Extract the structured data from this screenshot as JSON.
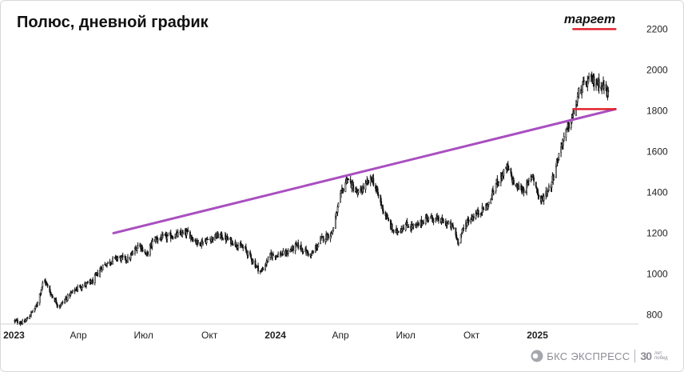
{
  "title": "Полюс, дневной график",
  "chart_data": {
    "type": "candlestick",
    "title": "Полюс, дневной график",
    "xlabel": "",
    "ylabel": "",
    "ylim": [
      700,
      2280
    ],
    "yticks": [
      800,
      1000,
      1200,
      1400,
      1600,
      1800,
      2000,
      2200
    ],
    "xticks": [
      {
        "label": "2023",
        "date": "2023-01-01",
        "bold": true
      },
      {
        "label": "Апр",
        "date": "2023-04-01",
        "bold": false
      },
      {
        "label": "Июл",
        "date": "2023-07-01",
        "bold": false
      },
      {
        "label": "Окт",
        "date": "2023-10-01",
        "bold": false
      },
      {
        "label": "2024",
        "date": "2024-01-01",
        "bold": true
      },
      {
        "label": "Апр",
        "date": "2024-04-01",
        "bold": false
      },
      {
        "label": "Июл",
        "date": "2024-07-01",
        "bold": false
      },
      {
        "label": "Окт",
        "date": "2024-10-01",
        "bold": false
      },
      {
        "label": "2025",
        "date": "2025-01-01",
        "bold": true
      }
    ],
    "price_path": [
      [
        "2023-01-01",
        770
      ],
      [
        "2023-01-15",
        760
      ],
      [
        "2023-02-01",
        840
      ],
      [
        "2023-02-12",
        975
      ],
      [
        "2023-02-22",
        900
      ],
      [
        "2023-03-05",
        840
      ],
      [
        "2023-03-20",
        900
      ],
      [
        "2023-04-01",
        935
      ],
      [
        "2023-04-20",
        960
      ],
      [
        "2023-05-05",
        1040
      ],
      [
        "2023-05-25",
        1080
      ],
      [
        "2023-06-10",
        1070
      ],
      [
        "2023-06-25",
        1150
      ],
      [
        "2023-07-05",
        1090
      ],
      [
        "2023-07-15",
        1170
      ],
      [
        "2023-08-01",
        1180
      ],
      [
        "2023-08-15",
        1190
      ],
      [
        "2023-09-01",
        1200
      ],
      [
        "2023-09-15",
        1150
      ],
      [
        "2023-10-01",
        1170
      ],
      [
        "2023-10-15",
        1190
      ],
      [
        "2023-11-01",
        1160
      ],
      [
        "2023-11-20",
        1120
      ],
      [
        "2023-12-05",
        1040
      ],
      [
        "2023-12-12",
        1010
      ],
      [
        "2023-12-25",
        1090
      ],
      [
        "2024-01-15",
        1100
      ],
      [
        "2024-02-01",
        1140
      ],
      [
        "2024-02-20",
        1090
      ],
      [
        "2024-03-05",
        1170
      ],
      [
        "2024-03-20",
        1200
      ],
      [
        "2024-04-01",
        1380
      ],
      [
        "2024-04-10",
        1470
      ],
      [
        "2024-04-25",
        1390
      ],
      [
        "2024-05-05",
        1430
      ],
      [
        "2024-05-15",
        1470
      ],
      [
        "2024-06-01",
        1300
      ],
      [
        "2024-06-15",
        1200
      ],
      [
        "2024-07-01",
        1240
      ],
      [
        "2024-07-15",
        1230
      ],
      [
        "2024-08-01",
        1280
      ],
      [
        "2024-08-20",
        1260
      ],
      [
        "2024-09-05",
        1230
      ],
      [
        "2024-09-12",
        1160
      ],
      [
        "2024-09-25",
        1260
      ],
      [
        "2024-10-10",
        1300
      ],
      [
        "2024-10-25",
        1340
      ],
      [
        "2024-11-05",
        1450
      ],
      [
        "2024-11-20",
        1520
      ],
      [
        "2024-12-01",
        1430
      ],
      [
        "2024-12-15",
        1410
      ],
      [
        "2024-12-25",
        1490
      ],
      [
        "2025-01-05",
        1350
      ],
      [
        "2025-01-20",
        1440
      ],
      [
        "2025-02-05",
        1650
      ],
      [
        "2025-02-20",
        1780
      ],
      [
        "2025-03-01",
        1900
      ],
      [
        "2025-03-15",
        1950
      ],
      [
        "2025-04-01",
        1930
      ],
      [
        "2025-04-10",
        1880
      ]
    ],
    "lines": [
      {
        "name": "trendline",
        "color": "#a94fc0",
        "from": [
          "2023-05-20",
          1200
        ],
        "to": [
          "2025-04-20",
          1808
        ]
      },
      {
        "name": "level",
        "color": "#e0222c",
        "from": [
          "2025-02-20",
          1808
        ],
        "to": [
          "2025-04-20",
          1808
        ]
      },
      {
        "name": "target",
        "color": "#e0222c",
        "from": [
          "2025-02-20",
          2200
        ],
        "to": [
          "2025-04-20",
          2200
        ]
      }
    ],
    "annotations": [
      {
        "text": "таргет",
        "date": "2025-03-15",
        "value": 2245
      }
    ],
    "grid": false,
    "legend": "none"
  },
  "logo": {
    "name": "БКС ЭКСПРЕСС",
    "years": "30",
    "sub": "лет побед",
    "color": "#8c8c95"
  }
}
